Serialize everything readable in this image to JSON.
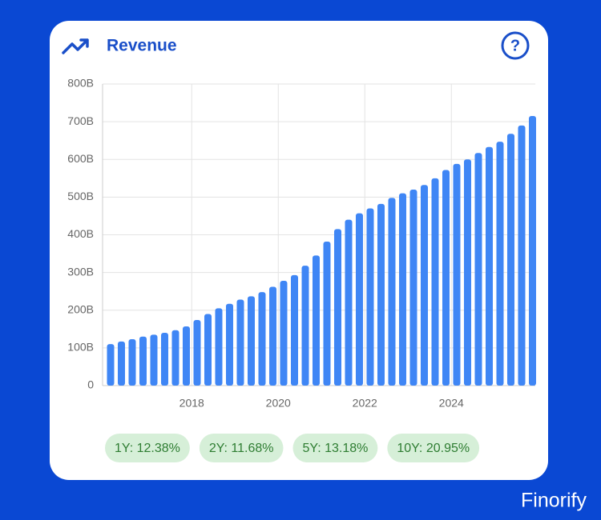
{
  "chart_data": {
    "type": "bar",
    "title": "Revenue",
    "color": "#3f86f5",
    "grid": true,
    "x": [
      2016.125,
      2016.375,
      2016.625,
      2016.875,
      2017.125,
      2017.375,
      2017.625,
      2017.875,
      2018.125,
      2018.375,
      2018.625,
      2018.875,
      2019.125,
      2019.375,
      2019.625,
      2019.875,
      2020.125,
      2020.375,
      2020.625,
      2020.875,
      2021.125,
      2021.375,
      2021.625,
      2021.875,
      2022.125,
      2022.375,
      2022.625,
      2022.875,
      2023.125,
      2023.375,
      2023.625,
      2023.875,
      2024.125,
      2024.375,
      2024.625,
      2024.875,
      2025.125,
      2025.375,
      2025.625,
      2025.875
    ],
    "values": [
      110,
      117,
      123,
      130,
      135,
      140,
      147,
      157,
      174,
      190,
      205,
      217,
      228,
      237,
      248,
      262,
      278,
      293,
      318,
      345,
      382,
      415,
      440,
      457,
      470,
      482,
      498,
      510,
      520,
      532,
      550,
      572,
      588,
      600,
      617,
      633,
      647,
      668,
      690,
      715
    ],
    "xlim": [
      2015.94,
      2025.94
    ],
    "xticks": [
      2018,
      2020,
      2022,
      2024
    ],
    "ylim": [
      0,
      800
    ],
    "yticks": [
      0,
      {
        "value": 100,
        "label": "100B"
      },
      {
        "value": 200,
        "label": "200B"
      },
      {
        "value": 300,
        "label": "300B"
      },
      {
        "value": 400,
        "label": "400B"
      },
      {
        "value": 500,
        "label": "500B"
      },
      {
        "value": 600,
        "label": "600B"
      },
      {
        "value": 700,
        "label": "700B"
      },
      {
        "value": 800,
        "label": "800B"
      }
    ]
  },
  "stats": [
    "1Y: 12.38%",
    "2Y: 11.68%",
    "5Y: 13.18%",
    "10Y: 20.95%"
  ],
  "brand": "Finorify"
}
